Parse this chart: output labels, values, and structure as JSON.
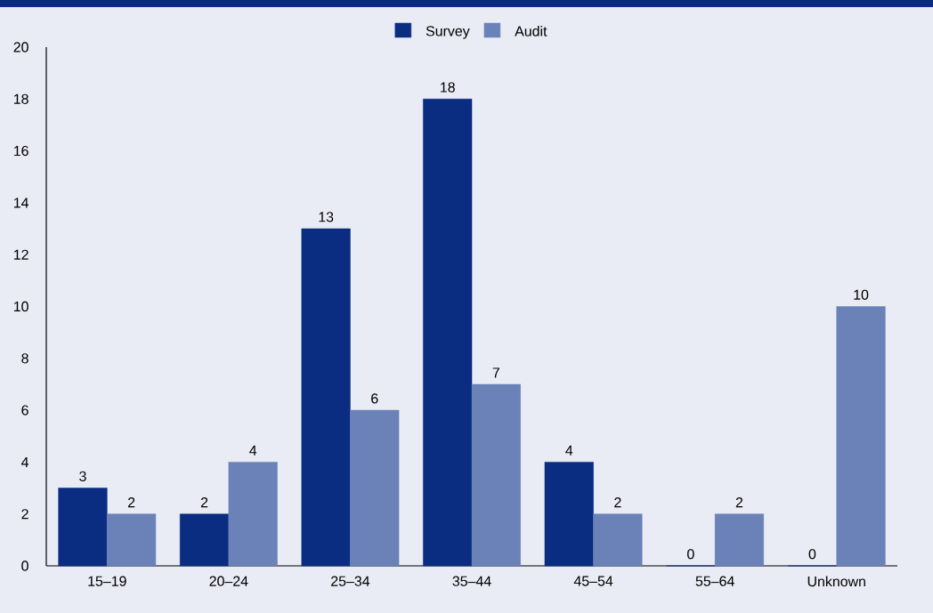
{
  "chart_data": {
    "type": "bar",
    "categories": [
      "15–19",
      "20–24",
      "25–34",
      "35–44",
      "45–54",
      "55–64",
      "Unknown"
    ],
    "series": [
      {
        "name": "Survey",
        "color": "#0a2d82",
        "values": [
          3,
          2,
          13,
          18,
          4,
          0,
          0
        ]
      },
      {
        "name": "Audit",
        "color": "#6b82b8",
        "values": [
          2,
          4,
          6,
          7,
          2,
          2,
          10
        ]
      }
    ],
    "ylim": [
      0,
      20
    ],
    "yticks": [
      0,
      2,
      4,
      6,
      8,
      10,
      12,
      14,
      16,
      18,
      20
    ],
    "legend": "top",
    "data_labels": true
  }
}
